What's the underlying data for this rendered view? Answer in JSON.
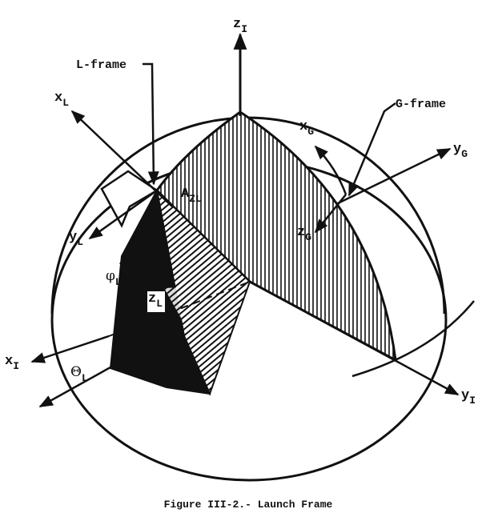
{
  "figure": {
    "caption": "Figure III-2.- Launch Frame",
    "frame_labels": {
      "l_frame": "L-frame",
      "g_frame": "G-frame"
    },
    "axes": {
      "z_i": {
        "main": "z",
        "sub": "I"
      },
      "x_l": {
        "main": "x",
        "sub": "L"
      },
      "x_g": {
        "main": "x",
        "sub": "G"
      },
      "y_g": {
        "main": "y",
        "sub": "G"
      },
      "y_l": {
        "main": "y",
        "sub": "L"
      },
      "z_g": {
        "main": "z",
        "sub": "G"
      },
      "z_l": {
        "main": "z",
        "sub": "L"
      },
      "x_i": {
        "main": "x",
        "sub": "I"
      },
      "y_i": {
        "main": "y",
        "sub": "I"
      }
    },
    "angles": {
      "a_zl": {
        "main": "A",
        "sub": "ZL"
      },
      "phi_l": {
        "main": "φ",
        "sub": "L"
      },
      "theta_l": {
        "main": "Θ",
        "sub": "L"
      }
    },
    "colors": {
      "ink": "#111111",
      "paper": "#ffffff"
    }
  }
}
